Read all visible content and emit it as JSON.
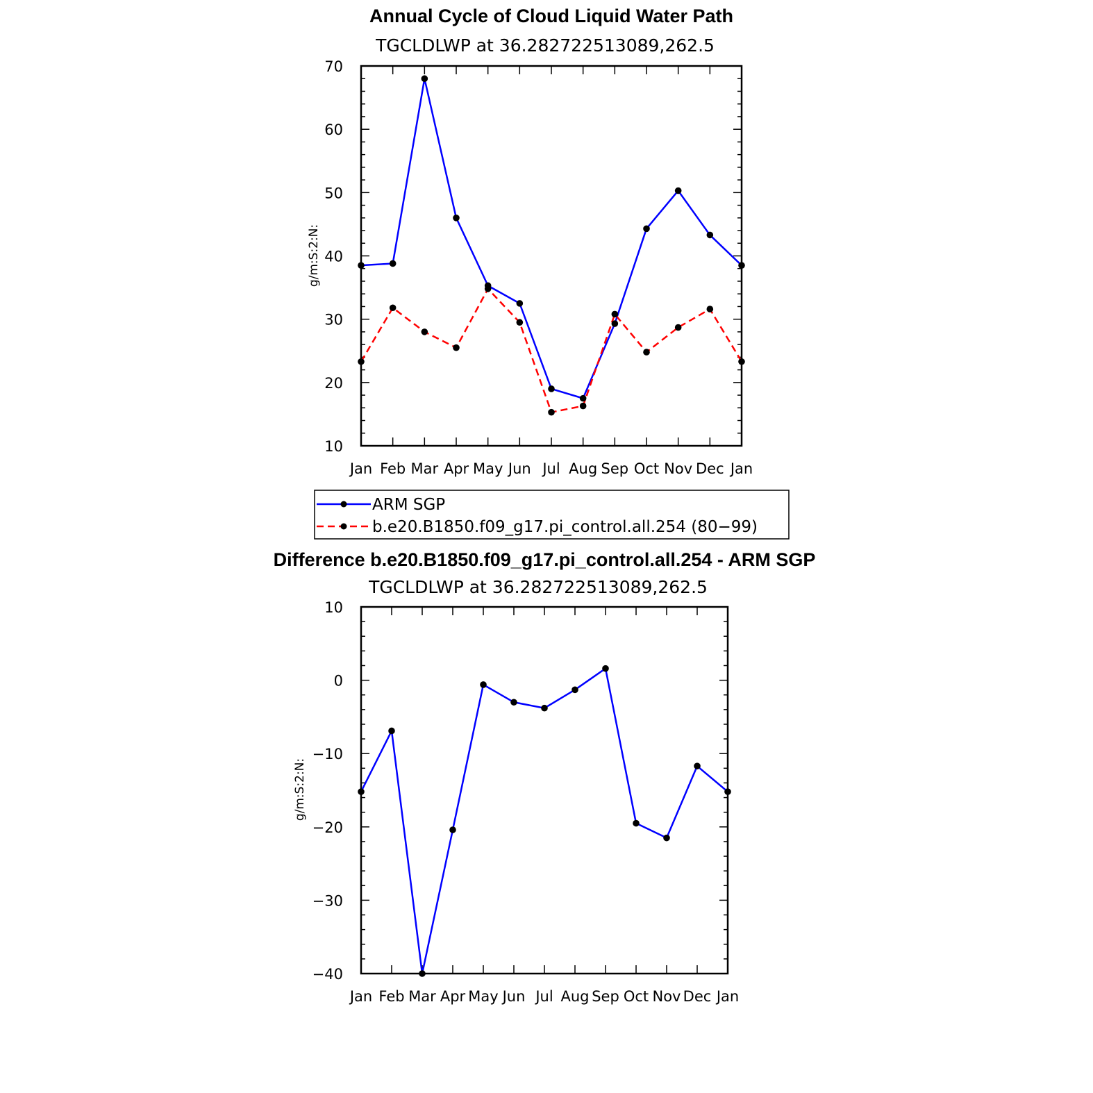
{
  "chart_data": [
    {
      "type": "line",
      "title": "Annual Cycle of Cloud Liquid Water Path",
      "subtitle": "TGCLDLWP  at  36.282722513089,262.5",
      "ylabel": "g/m:S:2:N:",
      "xlabel": "",
      "categories": [
        "Jan",
        "Feb",
        "Mar",
        "Apr",
        "May",
        "Jun",
        "Jul",
        "Aug",
        "Sep",
        "Oct",
        "Nov",
        "Dec",
        "Jan"
      ],
      "ylim": [
        10,
        70
      ],
      "yticks": [
        10,
        20,
        30,
        40,
        50,
        60,
        70
      ],
      "series": [
        {
          "name": "ARM SGP",
          "color": "#0000ff",
          "dash": "solid",
          "values": [
            38.5,
            38.8,
            68.0,
            46.0,
            35.3,
            32.5,
            19.0,
            17.5,
            29.3,
            44.3,
            50.3,
            43.3,
            38.5
          ]
        },
        {
          "name": "b.e20.B1850.f09_g17.pi_control.all.254 (80−99)",
          "color": "#ff0000",
          "dash": "dashed",
          "values": [
            23.3,
            31.8,
            28.0,
            25.5,
            34.8,
            29.5,
            15.3,
            16.3,
            30.8,
            24.8,
            28.7,
            31.6,
            23.3
          ]
        }
      ]
    },
    {
      "type": "line",
      "title": "Difference b.e20.B1850.f09_g17.pi_control.all.254 - ARM SGP",
      "subtitle": "TGCLDLWP  at  36.282722513089,262.5",
      "ylabel": "g/m:S:2:N:",
      "xlabel": "",
      "categories": [
        "Jan",
        "Feb",
        "Mar",
        "Apr",
        "May",
        "Jun",
        "Jul",
        "Aug",
        "Sep",
        "Oct",
        "Nov",
        "Dec",
        "Jan"
      ],
      "ylim": [
        -40,
        10
      ],
      "yticks": [
        -40,
        -30,
        -20,
        -10,
        0,
        10
      ],
      "ytick_labels": [
        "−40",
        "−30",
        "−20",
        "−10",
        "0",
        "10"
      ],
      "series": [
        {
          "name": "Difference",
          "color": "#0000ff",
          "dash": "solid",
          "values": [
            -15.2,
            -6.9,
            -40.0,
            -20.4,
            -0.6,
            -3.0,
            -3.8,
            -1.3,
            1.6,
            -19.5,
            -21.5,
            -11.7,
            -15.2
          ]
        }
      ]
    }
  ]
}
